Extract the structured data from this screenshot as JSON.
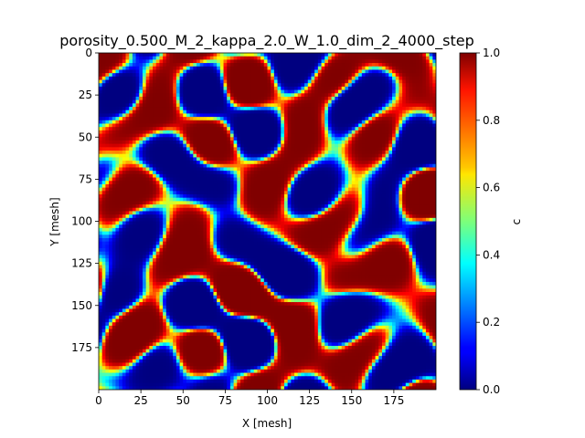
{
  "chart_data": {
    "type": "heatmap",
    "title": "porosity_0.500_M_2_kappa_2.0_W_1.0_dim_2_4000_step",
    "xlabel": "X [mesh]",
    "ylabel": "Y [mesh]",
    "xlim": [
      0,
      200
    ],
    "ylim": [
      200,
      0
    ],
    "x_ticks": [
      "0",
      "25",
      "50",
      "75",
      "100",
      "125",
      "150",
      "175"
    ],
    "y_ticks": [
      "0",
      "25",
      "50",
      "75",
      "100",
      "125",
      "150",
      "175"
    ],
    "colorbar": {
      "label": "c",
      "range": [
        0.0,
        1.0
      ],
      "ticks": [
        "0.0",
        "0.2",
        "0.4",
        "0.6",
        "0.8",
        "1.0"
      ],
      "colormap": "jet"
    },
    "grid": false,
    "colors": {
      "low": "#00007f",
      "high": "#7f0000",
      "mid": "#ffff00"
    }
  }
}
